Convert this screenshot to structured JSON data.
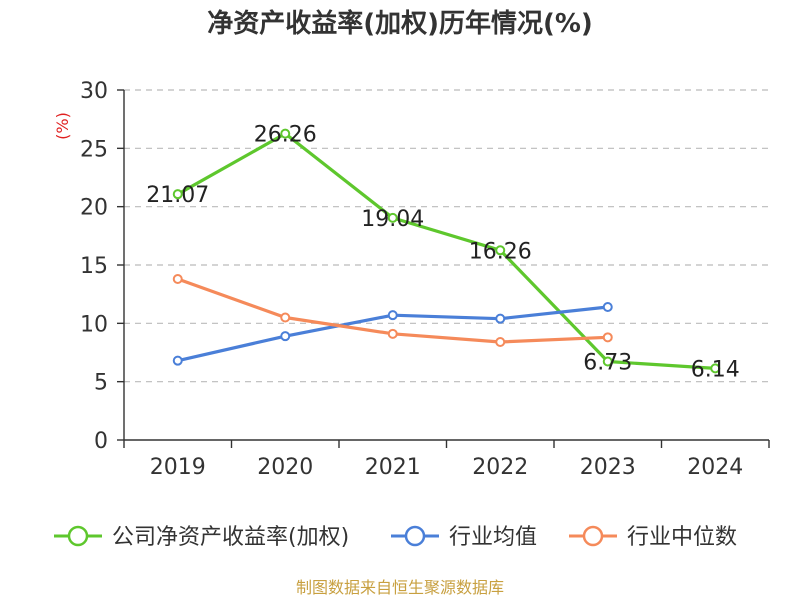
{
  "chart_data": {
    "type": "line",
    "title": "净资产收益率(加权)历年情况(%)",
    "ylabel": "(%)",
    "categories": [
      "2019",
      "2020",
      "2021",
      "2022",
      "2023",
      "2024"
    ],
    "ylim": [
      0,
      30
    ],
    "yticks": [
      0,
      5,
      10,
      15,
      20,
      25,
      30
    ],
    "grid": true,
    "legend_position": "bottom",
    "series": [
      {
        "name": "公司净资产收益率(加权)",
        "color": "#5ec72d",
        "values": [
          21.07,
          26.26,
          19.04,
          16.26,
          6.73,
          6.14
        ],
        "labels": [
          "21.07",
          "26.26",
          "19.04",
          "16.26",
          "6.73",
          "6.14"
        ]
      },
      {
        "name": "行业均值",
        "color": "#4a7fd8",
        "values": [
          6.8,
          8.9,
          10.7,
          10.4,
          11.4,
          null
        ]
      },
      {
        "name": "行业中位数",
        "color": "#f58a5a",
        "values": [
          13.8,
          10.5,
          9.1,
          8.4,
          8.8,
          null
        ]
      }
    ],
    "source": "制图数据来自恒生聚源数据库"
  }
}
